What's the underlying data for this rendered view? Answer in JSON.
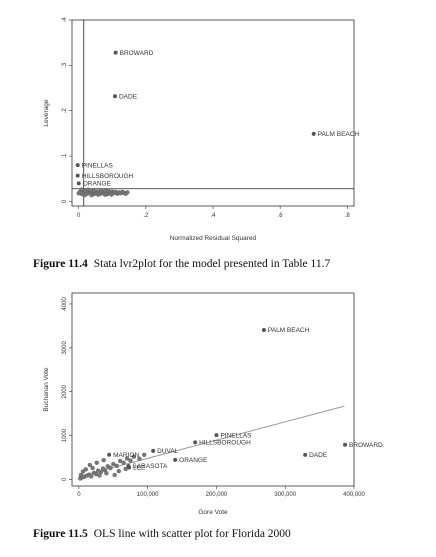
{
  "figure_11_4": {
    "caption_number": "Figure 11.4",
    "caption_text": "Stata lvr2plot for the model presented in Table 11.7"
  },
  "figure_11_5": {
    "caption_number": "Figure 11.5",
    "caption_text": "OLS line with scatter plot for Florida 2000"
  },
  "chart_data": [
    {
      "type": "scatter",
      "title": "",
      "xlabel": "Normalized Residual Squared",
      "ylabel": "Leverage",
      "xlim": [
        -0.02,
        0.82
      ],
      "ylim": [
        -0.01,
        0.4
      ],
      "xticks": [
        0,
        0.2,
        0.4,
        0.6,
        0.8
      ],
      "xtick_labels": [
        "0",
        ".2",
        ".4",
        ".6",
        ".8"
      ],
      "yticks": [
        0,
        0.1,
        0.2,
        0.3,
        0.4
      ],
      "ytick_labels": [
        "0",
        ".1",
        ".2",
        ".3",
        ".4"
      ],
      "reference_lines": {
        "x": 0.015,
        "y": 0.028
      },
      "labeled_points": [
        {
          "label": "BROWARD",
          "x": 0.11,
          "y": 0.328
        },
        {
          "label": "DADE",
          "x": 0.108,
          "y": 0.232
        },
        {
          "label": "PALM BEACH",
          "x": 0.7,
          "y": 0.149
        },
        {
          "label": "PINELLAS",
          "x": -0.003,
          "y": 0.08
        },
        {
          "label": "HILLSBOROUGH",
          "x": -0.003,
          "y": 0.057
        },
        {
          "label": "ORANGE",
          "x": 0.0,
          "y": 0.04
        }
      ],
      "cluster_points": [
        {
          "x": 0.0,
          "y": 0.018
        },
        {
          "x": 0.005,
          "y": 0.022
        },
        {
          "x": 0.01,
          "y": 0.016
        },
        {
          "x": 0.015,
          "y": 0.02
        },
        {
          "x": 0.02,
          "y": 0.024
        },
        {
          "x": 0.025,
          "y": 0.017
        },
        {
          "x": 0.03,
          "y": 0.021
        },
        {
          "x": 0.035,
          "y": 0.019
        },
        {
          "x": 0.04,
          "y": 0.023
        },
        {
          "x": 0.045,
          "y": 0.016
        },
        {
          "x": 0.05,
          "y": 0.02
        },
        {
          "x": 0.055,
          "y": 0.018
        },
        {
          "x": 0.06,
          "y": 0.022
        },
        {
          "x": 0.065,
          "y": 0.017
        },
        {
          "x": 0.07,
          "y": 0.021
        },
        {
          "x": 0.075,
          "y": 0.019
        },
        {
          "x": 0.08,
          "y": 0.023
        },
        {
          "x": 0.085,
          "y": 0.016
        },
        {
          "x": 0.09,
          "y": 0.02
        },
        {
          "x": 0.095,
          "y": 0.018
        },
        {
          "x": 0.1,
          "y": 0.022
        },
        {
          "x": 0.105,
          "y": 0.019
        },
        {
          "x": 0.11,
          "y": 0.021
        },
        {
          "x": 0.115,
          "y": 0.017
        },
        {
          "x": 0.12,
          "y": 0.02
        },
        {
          "x": 0.125,
          "y": 0.018
        },
        {
          "x": 0.13,
          "y": 0.021
        },
        {
          "x": 0.135,
          "y": 0.019
        },
        {
          "x": 0.14,
          "y": 0.017
        },
        {
          "x": 0.145,
          "y": 0.02
        },
        {
          "x": 0.008,
          "y": 0.026
        },
        {
          "x": 0.018,
          "y": 0.014
        },
        {
          "x": 0.028,
          "y": 0.026
        },
        {
          "x": 0.038,
          "y": 0.014
        },
        {
          "x": 0.048,
          "y": 0.025
        },
        {
          "x": 0.058,
          "y": 0.015
        },
        {
          "x": 0.068,
          "y": 0.025
        },
        {
          "x": 0.078,
          "y": 0.015
        },
        {
          "x": 0.088,
          "y": 0.024
        },
        {
          "x": 0.098,
          "y": 0.015
        }
      ]
    },
    {
      "type": "scatter",
      "title": "",
      "xlabel": "Gore Vote",
      "ylabel": "Buchanan Vote",
      "xlim": [
        -10000,
        400000
      ],
      "ylim": [
        -150,
        4250
      ],
      "xticks": [
        0,
        100000,
        200000,
        300000,
        400000
      ],
      "xtick_labels": [
        "0",
        "100,000",
        "200,000",
        "300,000",
        "400,000"
      ],
      "yticks": [
        0,
        1000,
        2000,
        3000,
        4000
      ],
      "ytick_labels": [
        "0",
        "1000",
        "2000",
        "3000",
        "4000"
      ],
      "fit_line": {
        "x": [
          0,
          386000
        ],
        "y": [
          65,
          1670
        ]
      },
      "labeled_points": [
        {
          "label": "PALM BEACH",
          "x": 269000,
          "y": 3407
        },
        {
          "label": "PINELLAS",
          "x": 200000,
          "y": 1010
        },
        {
          "label": "HILLSBOROUGH",
          "x": 169000,
          "y": 845
        },
        {
          "label": "BROWARD",
          "x": 387000,
          "y": 790
        },
        {
          "label": "DADE",
          "x": 329000,
          "y": 560
        },
        {
          "label": "ORANGE",
          "x": 140000,
          "y": 446
        },
        {
          "label": "DUVAL",
          "x": 108000,
          "y": 652
        },
        {
          "label": "MARION",
          "x": 44000,
          "y": 563
        },
        {
          "label": "SARASOTA",
          "x": 72000,
          "y": 305
        },
        {
          "label": "LEE",
          "x": 73000,
          "y": 271
        }
      ],
      "cluster_points": [
        {
          "x": 2000,
          "y": 20
        },
        {
          "x": 5000,
          "y": 45
        },
        {
          "x": 8000,
          "y": 60
        },
        {
          "x": 12000,
          "y": 90
        },
        {
          "x": 15000,
          "y": 110
        },
        {
          "x": 18000,
          "y": 70
        },
        {
          "x": 22000,
          "y": 150
        },
        {
          "x": 25000,
          "y": 120
        },
        {
          "x": 28000,
          "y": 200
        },
        {
          "x": 32000,
          "y": 170
        },
        {
          "x": 35000,
          "y": 250
        },
        {
          "x": 38000,
          "y": 210
        },
        {
          "x": 42000,
          "y": 300
        },
        {
          "x": 46000,
          "y": 260
        },
        {
          "x": 50000,
          "y": 350
        },
        {
          "x": 55000,
          "y": 310
        },
        {
          "x": 60000,
          "y": 420
        },
        {
          "x": 65000,
          "y": 380
        },
        {
          "x": 70000,
          "y": 480
        },
        {
          "x": 75000,
          "y": 430
        },
        {
          "x": 80000,
          "y": 520
        },
        {
          "x": 88000,
          "y": 470
        },
        {
          "x": 95000,
          "y": 560
        },
        {
          "x": 6000,
          "y": 180
        },
        {
          "x": 10000,
          "y": 230
        },
        {
          "x": 20000,
          "y": 260
        },
        {
          "x": 30000,
          "y": 90
        },
        {
          "x": 40000,
          "y": 140
        },
        {
          "x": 58000,
          "y": 190
        },
        {
          "x": 68000,
          "y": 240
        },
        {
          "x": 52000,
          "y": 100
        },
        {
          "x": 3000,
          "y": 100
        },
        {
          "x": 16000,
          "y": 330
        },
        {
          "x": 26000,
          "y": 380
        },
        {
          "x": 36000,
          "y": 440
        }
      ]
    }
  ]
}
